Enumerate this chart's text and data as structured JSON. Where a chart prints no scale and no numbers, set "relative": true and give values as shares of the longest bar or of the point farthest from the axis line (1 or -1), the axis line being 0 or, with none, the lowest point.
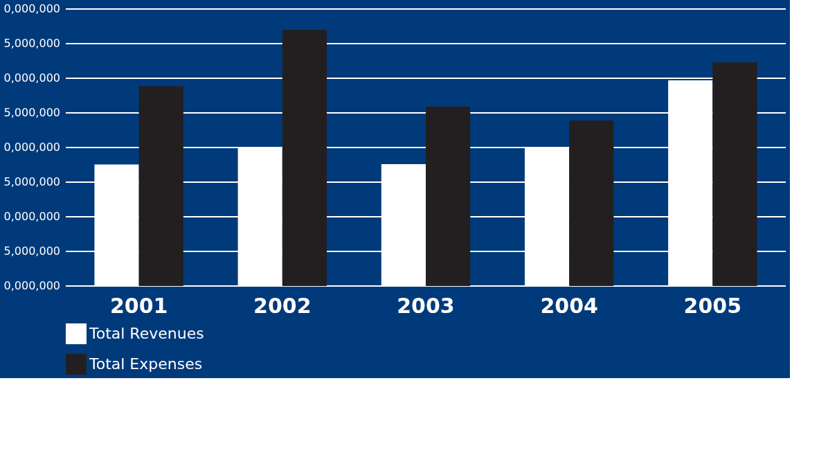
{
  "chart_data": {
    "type": "bar",
    "relative": true,
    "categories": [
      "2001",
      "2002",
      "2003",
      "2004",
      "2005"
    ],
    "series": [
      {
        "name": "Total Revenues",
        "color": "#ffffff",
        "values": [
          0.474,
          0.542,
          0.476,
          0.542,
          0.803
        ]
      },
      {
        "name": "Total Expenses",
        "color": "#231f20",
        "values": [
          0.78,
          1,
          0.7,
          0.646,
          0.873
        ]
      }
    ],
    "annotations": [
      "0,000,000",
      "5,000,000",
      "0,000,000",
      "5,000,000",
      "0,000,000",
      "5,000,000",
      "0,000,000",
      "5,000,000",
      "0,000,000"
    ],
    "grid": true,
    "legend": "bottom left"
  }
}
